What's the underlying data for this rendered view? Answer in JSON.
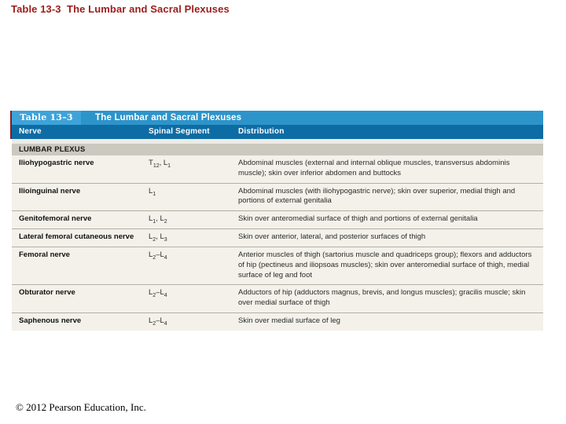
{
  "slide": {
    "title": "Table 13-3  The Lumbar and Sacral Plexuses",
    "footer": "© 2012 Pearson Education, Inc."
  },
  "table": {
    "label": "Table 13–3",
    "heading": "The Lumbar and Sacral Plexuses",
    "columns": {
      "nerve": "Nerve",
      "segment": "Spinal Segment",
      "distribution": "Distribution"
    },
    "section": "LUMBAR PLEXUS",
    "rows": [
      {
        "nerve": "Iliohypogastric nerve",
        "segment": [
          {
            "t": "T",
            "s": "12"
          },
          {
            "t": ", L",
            "s": "1"
          }
        ],
        "distribution": "Abdominal muscles (external and internal oblique muscles, transversus abdominis muscle); skin over inferior abdomen and buttocks"
      },
      {
        "nerve": "Ilioinguinal nerve",
        "segment": [
          {
            "t": "L",
            "s": "1"
          }
        ],
        "distribution": "Abdominal muscles (with iliohypogastric nerve); skin over superior, medial thigh and portions of external genitalia"
      },
      {
        "nerve": "Genitofemoral nerve",
        "segment": [
          {
            "t": "L",
            "s": "1"
          },
          {
            "t": ", L",
            "s": "2"
          }
        ],
        "distribution": "Skin over anteromedial surface of thigh and portions of external genitalia"
      },
      {
        "nerve": "Lateral femoral cutaneous nerve",
        "segment": [
          {
            "t": "L",
            "s": "2"
          },
          {
            "t": ", L",
            "s": "3"
          }
        ],
        "distribution": "Skin over anterior, lateral, and posterior surfaces of thigh"
      },
      {
        "nerve": "Femoral nerve",
        "segment": [
          {
            "t": "L",
            "s": "2"
          },
          {
            "t": "–L",
            "s": "4"
          }
        ],
        "distribution": "Anterior muscles of thigh (sartorius muscle and quadriceps group); flexors and adductors of hip (pectineus and iliopsoas muscles); skin over anteromedial surface of thigh, medial surface of leg and foot"
      },
      {
        "nerve": "Obturator nerve",
        "segment": [
          {
            "t": "L",
            "s": "2"
          },
          {
            "t": "–L",
            "s": "4"
          }
        ],
        "distribution": "Adductors of hip (adductors magnus, brevis, and longus muscles); gracilis muscle; skin over medial surface of thigh"
      },
      {
        "nerve": "Saphenous nerve",
        "segment": [
          {
            "t": "L",
            "s": "2"
          },
          {
            "t": "–L",
            "s": "4"
          }
        ],
        "distribution": "Skin over medial surface of leg"
      }
    ]
  },
  "colors": {
    "title_red": "#9B1C1C",
    "label_box_blue": "#3EA3D8",
    "heading_bar_blue": "#2D94CA",
    "column_bar_blue": "#0E6CA4",
    "accent_maroon": "#7D1F24",
    "section_band": "#CBC8BF",
    "body_cream": "#F3F1EA",
    "divider": "#B3B0A5"
  }
}
